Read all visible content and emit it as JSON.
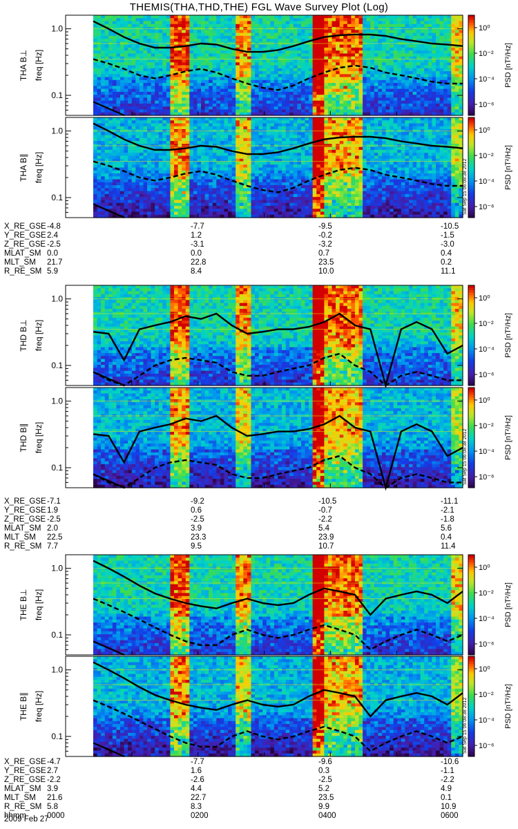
{
  "title": "THEMIS(THA,THD,THE) FGL Wave Survey Plot (Log)",
  "colorbar": {
    "label": "PSD [nT²/Hz]",
    "ticks": [
      "10⁰",
      "10⁻²",
      "10⁻⁴",
      "10⁻⁶"
    ]
  },
  "stamp": "Sat Sep 15 06:08:38 2012",
  "date_label": "2009 Feb 27",
  "chart_data": [
    {
      "type": "heatmap",
      "panel": "THA B⊥",
      "ylabel": "THA B⊥ freq [Hz]",
      "yscale": "log",
      "ylim": [
        0.05,
        1.6
      ],
      "yticks": [
        "1.0",
        "0.1"
      ],
      "xlim": [
        0,
        6
      ],
      "colorscale": "log PSD 10^-6 .. 10^1 nT²/Hz",
      "solid_line": [
        1.3,
        1.0,
        0.75,
        0.6,
        0.52,
        0.52,
        0.55,
        0.6,
        0.58,
        0.5,
        0.45,
        0.45,
        0.48,
        0.55,
        0.65,
        0.75,
        0.8,
        0.82,
        0.82,
        0.78,
        0.7,
        0.65,
        0.6,
        0.58,
        0.55
      ],
      "dashed_line": [
        0.35,
        0.3,
        0.25,
        0.2,
        0.18,
        0.2,
        0.23,
        0.25,
        0.22,
        0.18,
        0.15,
        0.13,
        0.12,
        0.14,
        0.18,
        0.22,
        0.26,
        0.28,
        0.26,
        0.22,
        0.2,
        0.18,
        0.16,
        0.15,
        0.15
      ]
    },
    {
      "type": "heatmap",
      "panel": "THA B∥",
      "ylabel": "THA B∥ freq [Hz]",
      "yscale": "log",
      "ylim": [
        0.05,
        1.6
      ],
      "yticks": [
        "1.0",
        "0.1"
      ],
      "xlim": [
        0,
        6
      ],
      "solid_line": [
        1.3,
        1.0,
        0.75,
        0.6,
        0.52,
        0.52,
        0.55,
        0.6,
        0.58,
        0.5,
        0.45,
        0.45,
        0.48,
        0.55,
        0.65,
        0.75,
        0.8,
        0.82,
        0.82,
        0.78,
        0.7,
        0.65,
        0.6,
        0.58,
        0.55
      ],
      "dashed_line": [
        0.35,
        0.3,
        0.25,
        0.2,
        0.18,
        0.2,
        0.23,
        0.25,
        0.22,
        0.18,
        0.15,
        0.13,
        0.12,
        0.14,
        0.18,
        0.22,
        0.26,
        0.28,
        0.26,
        0.22,
        0.2,
        0.18,
        0.16,
        0.15,
        0.15
      ]
    },
    {
      "type": "heatmap",
      "panel": "THD B⊥",
      "ylabel": "THD B⊥ freq [Hz]",
      "yscale": "log",
      "ylim": [
        0.05,
        1.6
      ],
      "yticks": [
        "1.0",
        "0.1"
      ],
      "xlim": [
        0,
        6
      ],
      "solid_line": [
        0.32,
        0.3,
        0.12,
        0.35,
        0.4,
        0.45,
        0.55,
        0.5,
        0.6,
        0.4,
        0.3,
        0.32,
        0.35,
        0.35,
        0.38,
        0.45,
        0.6,
        0.4,
        0.35,
        0.05,
        0.35,
        0.45,
        0.35,
        0.15,
        0.2
      ],
      "dashed_line": [
        0.08,
        0.06,
        0.05,
        0.07,
        0.1,
        0.12,
        0.13,
        0.12,
        0.11,
        0.08,
        0.07,
        0.07,
        0.08,
        0.09,
        0.1,
        0.13,
        0.15,
        0.1,
        0.08,
        0.05,
        0.07,
        0.08,
        0.07,
        0.06,
        0.06
      ]
    },
    {
      "type": "heatmap",
      "panel": "THD B∥",
      "ylabel": "THD B∥ freq [Hz]",
      "yscale": "log",
      "ylim": [
        0.05,
        1.6
      ],
      "yticks": [
        "1.0",
        "0.1"
      ],
      "xlim": [
        0,
        6
      ],
      "solid_line": [
        0.32,
        0.3,
        0.12,
        0.35,
        0.4,
        0.45,
        0.55,
        0.5,
        0.6,
        0.4,
        0.3,
        0.32,
        0.35,
        0.35,
        0.38,
        0.45,
        0.6,
        0.4,
        0.35,
        0.05,
        0.35,
        0.45,
        0.35,
        0.15,
        0.2
      ],
      "dashed_line": [
        0.08,
        0.06,
        0.05,
        0.07,
        0.1,
        0.12,
        0.13,
        0.12,
        0.11,
        0.08,
        0.07,
        0.07,
        0.08,
        0.09,
        0.1,
        0.13,
        0.15,
        0.1,
        0.08,
        0.05,
        0.07,
        0.08,
        0.07,
        0.06,
        0.06
      ]
    },
    {
      "type": "heatmap",
      "panel": "THE B⊥",
      "ylabel": "THE B⊥ freq [Hz]",
      "yscale": "log",
      "ylim": [
        0.05,
        1.6
      ],
      "yticks": [
        "1.0",
        "0.1"
      ],
      "xlim": [
        0,
        6
      ],
      "solid_line": [
        1.3,
        1.0,
        0.75,
        0.55,
        0.42,
        0.35,
        0.3,
        0.27,
        0.25,
        0.3,
        0.35,
        0.3,
        0.28,
        0.3,
        0.4,
        0.5,
        0.45,
        0.4,
        0.2,
        0.35,
        0.4,
        0.45,
        0.4,
        0.3,
        0.45
      ],
      "dashed_line": [
        0.35,
        0.28,
        0.22,
        0.17,
        0.13,
        0.1,
        0.08,
        0.07,
        0.07,
        0.1,
        0.12,
        0.1,
        0.09,
        0.1,
        0.12,
        0.14,
        0.12,
        0.1,
        0.06,
        0.08,
        0.1,
        0.12,
        0.1,
        0.08,
        0.1
      ]
    },
    {
      "type": "heatmap",
      "panel": "THE B∥",
      "ylabel": "THE B∥ freq [Hz]",
      "yscale": "log",
      "ylim": [
        0.05,
        1.6
      ],
      "yticks": [
        "1.0",
        "0.1"
      ],
      "xlim": [
        0,
        6
      ],
      "solid_line": [
        1.3,
        1.0,
        0.75,
        0.55,
        0.42,
        0.35,
        0.3,
        0.27,
        0.25,
        0.3,
        0.35,
        0.3,
        0.28,
        0.3,
        0.4,
        0.5,
        0.45,
        0.4,
        0.2,
        0.35,
        0.4,
        0.45,
        0.4,
        0.3,
        0.45
      ],
      "dashed_line": [
        0.35,
        0.28,
        0.22,
        0.17,
        0.13,
        0.1,
        0.08,
        0.07,
        0.07,
        0.1,
        0.12,
        0.1,
        0.09,
        0.1,
        0.12,
        0.14,
        0.12,
        0.1,
        0.06,
        0.08,
        0.1,
        0.12,
        0.1,
        0.08,
        0.1
      ]
    }
  ],
  "ephemeris": [
    {
      "rows": [
        [
          "X_RE_GSE",
          "-4.8",
          "-7.7",
          "-9.5",
          "-10.5"
        ],
        [
          "Y_RE_GSE",
          "2.4",
          "1.2",
          "-0.2",
          "-1.5"
        ],
        [
          "Z_RE_GSE",
          "-2.5",
          "-3.1",
          "-3.2",
          "-3.0"
        ],
        [
          "MLAT_SM",
          "0.0",
          "0.0",
          "0.7",
          "0.4"
        ],
        [
          "MLT_SM",
          "21.7",
          "22.8",
          "23.5",
          "0.2"
        ],
        [
          "R_RE_SM",
          "5.9",
          "8.4",
          "10.0",
          "11.1"
        ]
      ]
    },
    {
      "rows": [
        [
          "X_RE_GSE",
          "-7.1",
          "-9.2",
          "-10.5",
          "-11.1"
        ],
        [
          "Y_RE_GSE",
          "1.9",
          "0.6",
          "-0.7",
          "-2.1"
        ],
        [
          "Z_RE_GSE",
          "-2.5",
          "-2.5",
          "-2.2",
          "-1.8"
        ],
        [
          "MLAT_SM",
          "2.0",
          "3.9",
          "5.4",
          "5.6"
        ],
        [
          "MLT_SM",
          "22.5",
          "23.3",
          "23.9",
          "0.4"
        ],
        [
          "R_RE_SM",
          "7.7",
          "9.5",
          "10.7",
          "11.4"
        ]
      ]
    },
    {
      "rows": [
        [
          "X_RE_GSE",
          "-4.7",
          "-7.7",
          "-9.6",
          "-10.6"
        ],
        [
          "Y_RE_GSE",
          "2.7",
          "1.6",
          "0.3",
          "-1.1"
        ],
        [
          "Z_RE_GSE",
          "-2.2",
          "-2.6",
          "-2.5",
          "-2.2"
        ],
        [
          "MLAT_SM",
          "3.9",
          "4.4",
          "5.2",
          "4.9"
        ],
        [
          "MLT_SM",
          "21.6",
          "22.7",
          "23.5",
          "0.1"
        ],
        [
          "R_RE_SM",
          "5.8",
          "8.3",
          "9.9",
          "10.9"
        ],
        [
          "hhmm",
          "0000",
          "0200",
          "0400",
          "0600"
        ]
      ]
    }
  ]
}
